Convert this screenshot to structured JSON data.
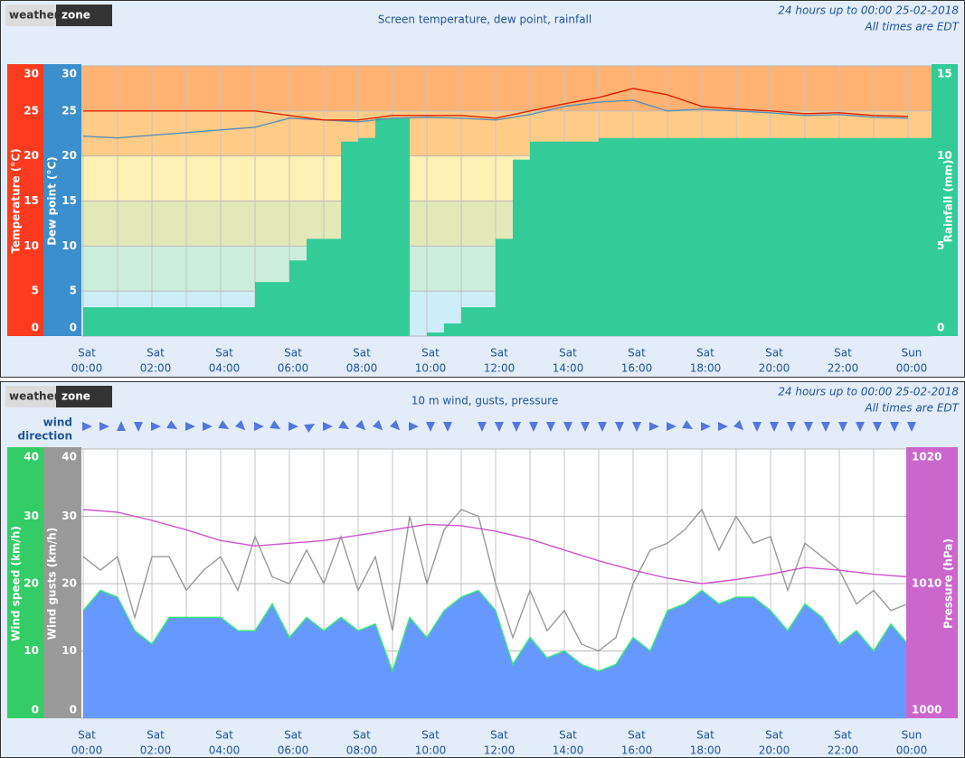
{
  "chart_data": [
    {
      "type": "line",
      "logo": [
        "weather",
        "zone"
      ],
      "title": "Screen temperature, dew point, rainfall",
      "subtitle": [
        "24 hours up to 00:00 25-02-2018",
        "All times are EDT"
      ],
      "xlim": [
        0,
        24
      ],
      "xticks": [
        {
          "value": 0,
          "label": [
            "Sat",
            "00:00"
          ]
        },
        {
          "value": 2,
          "label": [
            "Sat",
            "02:00"
          ]
        },
        {
          "value": 4,
          "label": [
            "Sat",
            "04:00"
          ]
        },
        {
          "value": 6,
          "label": [
            "Sat",
            "06:00"
          ]
        },
        {
          "value": 8,
          "label": [
            "Sat",
            "08:00"
          ]
        },
        {
          "value": 10,
          "label": [
            "Sat",
            "10:00"
          ]
        },
        {
          "value": 12,
          "label": [
            "Sat",
            "12:00"
          ]
        },
        {
          "value": 14,
          "label": [
            "Sat",
            "14:00"
          ]
        },
        {
          "value": 16,
          "label": [
            "Sat",
            "16:00"
          ]
        },
        {
          "value": 18,
          "label": [
            "Sat",
            "18:00"
          ]
        },
        {
          "value": 20,
          "label": [
            "Sat",
            "20:00"
          ]
        },
        {
          "value": 22,
          "label": [
            "Sat",
            "22:00"
          ]
        },
        {
          "value": 24,
          "label": [
            "Sun",
            "00:00"
          ]
        }
      ],
      "xminor": [
        1,
        3,
        5,
        7,
        9,
        11,
        13,
        15,
        17,
        19,
        21,
        23
      ],
      "grid": true,
      "band_colors": [
        "#cdeef6",
        "#cdeedd",
        "#e2e8b8",
        "#fff0b4",
        "#ffcc88",
        "#ffb272"
      ],
      "y_axes": [
        {
          "label": "Temperature (°C)",
          "side": "left",
          "color": "#ff3b1f",
          "lim": [
            0,
            30
          ],
          "ticks": [
            0,
            5,
            10,
            15,
            20,
            25,
            30
          ]
        },
        {
          "label": "Dew point (°C)",
          "side": "left",
          "color": "#3a8fcc",
          "lim": [
            0,
            30
          ],
          "ticks": [
            0,
            5,
            10,
            15,
            20,
            25,
            30
          ]
        },
        {
          "label": "Rainfall (mm)",
          "side": "right",
          "color": "#33cc99",
          "lim": [
            0,
            15
          ],
          "ticks": [
            0,
            5,
            10,
            15
          ]
        }
      ],
      "series": [
        {
          "type": "step",
          "axis": 2,
          "color": "#33cc99",
          "x": [
            0,
            5,
            6,
            6.5,
            7.5,
            8,
            8.5,
            9.5,
            10,
            10.5,
            11,
            12,
            12.5,
            13,
            15
          ],
          "values": [
            1.6,
            3.0,
            4.2,
            5.4,
            10.8,
            11.0,
            12.1,
            0,
            0.2,
            0.7,
            1.6,
            5.4,
            9.8,
            10.8,
            11.0
          ]
        },
        {
          "type": "line",
          "axis": 1,
          "color": "#5a8fb0",
          "x": [
            0,
            1,
            2,
            3,
            4,
            5,
            6,
            7,
            8,
            9,
            10,
            11,
            12,
            13,
            14,
            15,
            16,
            17,
            18,
            19,
            20,
            21,
            22,
            23,
            24
          ],
          "values": [
            22.2,
            22.0,
            22.3,
            22.6,
            22.9,
            23.2,
            24.2,
            24.0,
            23.8,
            24.2,
            24.3,
            24.2,
            24.0,
            24.6,
            25.5,
            26.0,
            26.2,
            25.0,
            25.2,
            25.0,
            24.8,
            24.5,
            24.6,
            24.3,
            24.2
          ]
        },
        {
          "type": "line",
          "axis": 0,
          "color": "#dd2200",
          "x": [
            0,
            1,
            2,
            3,
            4,
            5,
            6,
            7,
            8,
            9,
            10,
            11,
            12,
            13,
            14,
            15,
            16,
            17,
            18,
            19,
            20,
            21,
            22,
            23,
            24
          ],
          "values": [
            25.0,
            25.0,
            25.0,
            25.0,
            25.0,
            25.0,
            24.5,
            24.0,
            24.0,
            24.5,
            24.5,
            24.5,
            24.2,
            25.0,
            25.8,
            26.5,
            27.5,
            26.8,
            25.5,
            25.2,
            25.0,
            24.7,
            24.8,
            24.5,
            24.4
          ]
        }
      ]
    },
    {
      "type": "line",
      "logo": [
        "weather",
        "zone"
      ],
      "title": "10 m wind, gusts, pressure",
      "subtitle": [
        "24 hours up to 00:00 25-02-2018",
        "All times are EDT"
      ],
      "xlim": [
        0,
        24
      ],
      "xticks": [
        {
          "value": 0,
          "label": [
            "Sat",
            "00:00"
          ]
        },
        {
          "value": 2,
          "label": [
            "Sat",
            "02:00"
          ]
        },
        {
          "value": 4,
          "label": [
            "Sat",
            "04:00"
          ]
        },
        {
          "value": 6,
          "label": [
            "Sat",
            "06:00"
          ]
        },
        {
          "value": 8,
          "label": [
            "Sat",
            "08:00"
          ]
        },
        {
          "value": 10,
          "label": [
            "Sat",
            "10:00"
          ]
        },
        {
          "value": 12,
          "label": [
            "Sat",
            "12:00"
          ]
        },
        {
          "value": 14,
          "label": [
            "Sat",
            "14:00"
          ]
        },
        {
          "value": 16,
          "label": [
            "Sat",
            "16:00"
          ]
        },
        {
          "value": 18,
          "label": [
            "Sat",
            "18:00"
          ]
        },
        {
          "value": 20,
          "label": [
            "Sat",
            "20:00"
          ]
        },
        {
          "value": 22,
          "label": [
            "Sat",
            "22:00"
          ]
        },
        {
          "value": 24,
          "label": [
            "Sun",
            "00:00"
          ]
        }
      ],
      "xminor": [
        1,
        3,
        5,
        7,
        9,
        11,
        13,
        15,
        17,
        19,
        21,
        23
      ],
      "grid": true,
      "wind_direction": {
        "label": [
          "wind",
          "direction"
        ],
        "color": "#5577dd",
        "x": [
          0,
          0.5,
          1,
          1.5,
          2,
          2.5,
          3,
          3.5,
          4,
          4.5,
          5,
          5.5,
          6,
          6.5,
          7,
          7.5,
          8,
          8.5,
          9,
          9.5,
          10,
          10.5,
          11,
          11.5,
          12,
          12.5,
          13,
          13.5,
          14,
          14.5,
          15,
          15.5,
          16,
          16.5,
          17,
          17.5,
          18,
          18.5,
          19,
          19.5,
          20,
          20.5,
          21,
          21.5,
          22,
          22.5,
          23,
          23.5,
          24
        ],
        "values": [
          90,
          90,
          0,
          180,
          90,
          120,
          90,
          90,
          120,
          135,
          90,
          120,
          90,
          60,
          90,
          120,
          135,
          135,
          135,
          90,
          180,
          180,
          null,
          180,
          180,
          180,
          180,
          180,
          180,
          180,
          180,
          180,
          180,
          90,
          90,
          120,
          90,
          90,
          135,
          180,
          180,
          180,
          180,
          180,
          180,
          180,
          180,
          180,
          180
        ]
      },
      "y_axes": [
        {
          "label": "Wind speed (km/h)",
          "side": "left",
          "color": "#33cc66",
          "lim": [
            0,
            40
          ],
          "ticks": [
            0,
            10,
            20,
            30,
            40
          ]
        },
        {
          "label": "Wind gusts (km/h)",
          "side": "left",
          "color": "#999999",
          "lim": [
            0,
            40
          ],
          "ticks": [
            0,
            10,
            20,
            30,
            40
          ]
        },
        {
          "label": "Pressure (hPa)",
          "side": "right",
          "color": "#cc66cc",
          "lim": [
            1000,
            1020
          ],
          "ticks": [
            1000,
            1010,
            1020
          ]
        }
      ],
      "series": [
        {
          "type": "area",
          "axis": 0,
          "color": "#33ee77",
          "fill": "#6699ff",
          "x": [
            0,
            0.5,
            1,
            1.5,
            2,
            2.5,
            3,
            3.5,
            4,
            4.5,
            5,
            5.5,
            6,
            6.5,
            7,
            7.5,
            8,
            8.5,
            9,
            9.5,
            10,
            10.5,
            11,
            11.5,
            12,
            12.5,
            13,
            13.5,
            14,
            14.5,
            15,
            15.5,
            16,
            16.5,
            17,
            17.5,
            18,
            18.5,
            19,
            19.5,
            20,
            20.5,
            21,
            21.5,
            22,
            22.5,
            23,
            23.5,
            24
          ],
          "values": [
            16,
            19,
            18,
            13,
            11,
            15,
            15,
            15,
            15,
            13,
            13,
            17,
            12,
            15,
            13,
            15,
            13,
            14,
            7,
            15,
            12,
            16,
            18,
            19,
            16,
            8,
            12,
            9,
            10,
            8,
            7,
            8,
            12,
            10,
            16,
            17,
            19,
            17,
            18,
            18,
            16,
            13,
            17,
            15,
            11,
            13,
            10,
            14,
            11
          ]
        },
        {
          "type": "line",
          "axis": 1,
          "color": "#999999",
          "x": [
            0,
            0.5,
            1,
            1.5,
            2,
            2.5,
            3,
            3.5,
            4,
            4.5,
            5,
            5.5,
            6,
            6.5,
            7,
            7.5,
            8,
            8.5,
            9,
            9.5,
            10,
            10.5,
            11,
            11.5,
            12,
            12.5,
            13,
            13.5,
            14,
            14.5,
            15,
            15.5,
            16,
            16.5,
            17,
            17.5,
            18,
            18.5,
            19,
            19.5,
            20,
            20.5,
            21,
            21.5,
            22,
            22.5,
            23,
            23.5,
            24
          ],
          "values": [
            24,
            22,
            24,
            15,
            24,
            24,
            19,
            22,
            24,
            19,
            27,
            21,
            20,
            25,
            20,
            27,
            19,
            24,
            13,
            30,
            20,
            28,
            31,
            30,
            20,
            12,
            19,
            13,
            16,
            11,
            10,
            12,
            20,
            25,
            26,
            28,
            31,
            25,
            30,
            26,
            27,
            19,
            26,
            24,
            22,
            17,
            19,
            16,
            17
          ]
        },
        {
          "type": "line",
          "axis": 2,
          "color": "#cc55cc",
          "x": [
            0,
            1,
            2,
            3,
            4,
            5,
            6,
            7,
            8,
            9,
            10,
            11,
            12,
            13,
            14,
            15,
            16,
            17,
            18,
            19,
            20,
            21,
            22,
            23,
            24
          ],
          "values": [
            1015.5,
            1015.3,
            1014.7,
            1014.0,
            1013.2,
            1012.8,
            1013.0,
            1013.2,
            1013.6,
            1014.0,
            1014.4,
            1014.3,
            1013.9,
            1013.3,
            1012.5,
            1011.7,
            1011.0,
            1010.4,
            1010.0,
            1010.3,
            1010.7,
            1011.2,
            1011.0,
            1010.7,
            1010.5
          ]
        }
      ]
    }
  ]
}
